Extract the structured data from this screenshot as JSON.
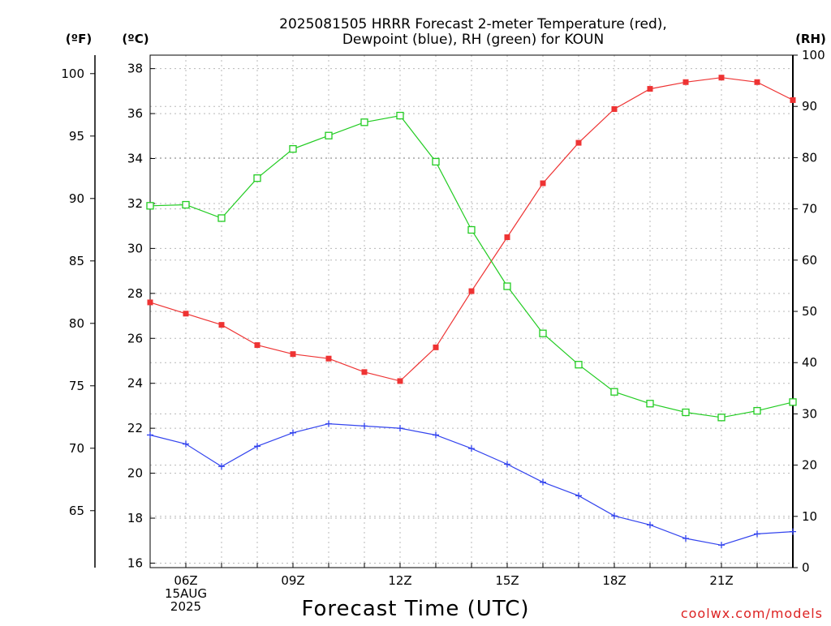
{
  "chart_data": {
    "type": "line",
    "title": [
      "2025081505 HRRR Forecast 2-meter Temperature (red),",
      "Dewpoint (blue), RH (green) for KOUN"
    ],
    "xlabel": "Forecast Time (UTC)",
    "credit": "coolwx.com/models",
    "grid": true,
    "x": [
      "05Z",
      "06Z",
      "07Z",
      "08Z",
      "09Z",
      "10Z",
      "11Z",
      "12Z",
      "13Z",
      "14Z",
      "15Z",
      "16Z",
      "17Z",
      "18Z",
      "19Z",
      "20Z",
      "21Z",
      "22Z",
      "23Z"
    ],
    "x_tick_labels": [
      {
        "hour": 1,
        "lines": [
          "06Z",
          "15AUG",
          "2025"
        ]
      },
      {
        "hour": 4,
        "lines": [
          "09Z"
        ]
      },
      {
        "hour": 7,
        "lines": [
          "12Z"
        ]
      },
      {
        "hour": 10,
        "lines": [
          "15Z"
        ]
      },
      {
        "hour": 13,
        "lines": [
          "18Z"
        ]
      },
      {
        "hour": 16,
        "lines": [
          "21Z"
        ]
      }
    ],
    "axes": {
      "fahrenheit": {
        "unit_label": "(ºF)",
        "ticks": [
          65,
          70,
          75,
          80,
          85,
          90,
          95,
          100
        ]
      },
      "celsius": {
        "unit_label": "(ºC)",
        "ylim": [
          15.8,
          38.6
        ],
        "ticks": [
          16,
          18,
          20,
          22,
          24,
          26,
          28,
          30,
          32,
          34,
          36,
          38
        ]
      },
      "rh": {
        "unit_label": "(RH)",
        "ylim": [
          0,
          100
        ],
        "ticks": [
          0,
          10,
          20,
          30,
          40,
          50,
          60,
          70,
          80,
          90,
          100
        ]
      }
    },
    "series": [
      {
        "key": "temperature",
        "axis": "celsius",
        "color": "#ee3333",
        "marker": "filled-square",
        "values": [
          27.6,
          27.1,
          26.6,
          25.7,
          25.3,
          25.1,
          24.5,
          24.1,
          25.6,
          28.1,
          30.5,
          32.9,
          34.7,
          36.2,
          37.1,
          37.4,
          37.6,
          37.4,
          36.6
        ]
      },
      {
        "key": "dewpoint",
        "axis": "celsius",
        "color": "#3344ee",
        "marker": "plus",
        "values": [
          21.7,
          21.3,
          20.3,
          21.2,
          21.8,
          22.2,
          22.1,
          22.0,
          21.7,
          21.1,
          20.4,
          19.6,
          19.0,
          18.1,
          17.7,
          17.1,
          16.8,
          17.3,
          17.4
        ]
      },
      {
        "key": "relative_humidity",
        "axis": "rh",
        "color": "#22cc22",
        "marker": "open-square",
        "values": [
          70.6,
          70.8,
          68.2,
          76.0,
          81.7,
          84.3,
          86.9,
          88.2,
          79.2,
          65.9,
          54.9,
          45.7,
          39.6,
          34.3,
          32.0,
          30.3,
          29.3,
          30.6,
          32.3
        ]
      }
    ]
  }
}
